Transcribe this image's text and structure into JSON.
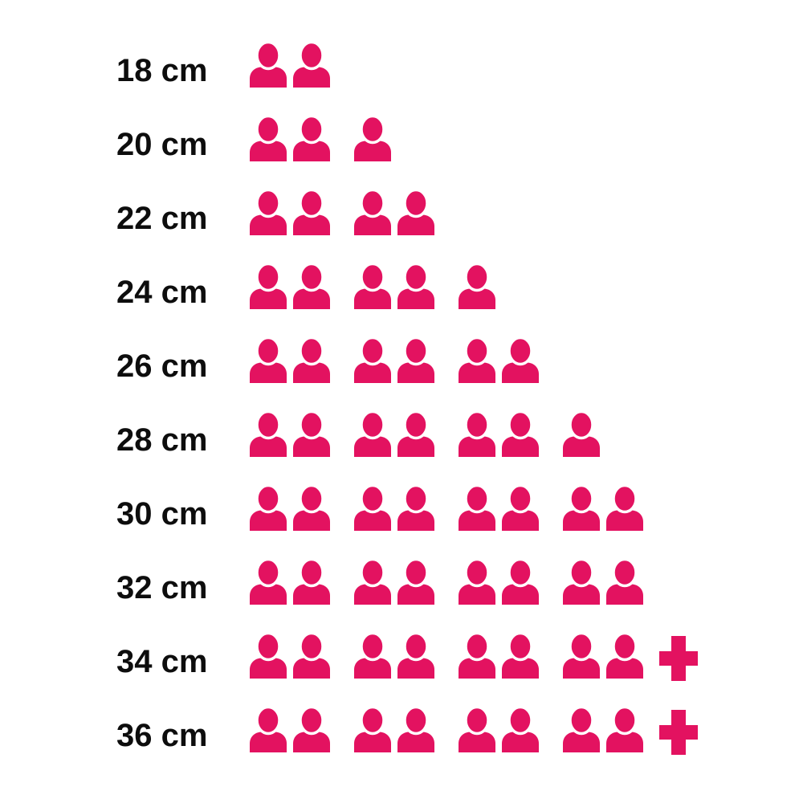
{
  "chart_data": {
    "type": "bar",
    "subtype": "pictogram",
    "title": "",
    "categories": [
      "18 cm",
      "20 cm",
      "22 cm",
      "24 cm",
      "26 cm",
      "28 cm",
      "30 cm",
      "32 cm",
      "34 cm",
      "36 cm"
    ],
    "values": [
      2,
      3,
      4,
      5,
      6,
      7,
      8,
      8,
      8,
      8
    ],
    "overflow_plus": [
      false,
      false,
      false,
      false,
      false,
      false,
      false,
      false,
      true,
      true
    ],
    "icon": "person-icon",
    "icon_grouping": 2,
    "icon_color": "#E31260",
    "plus_symbol": "+",
    "label_color": "#0d0d0d",
    "background_color": "#ffffff",
    "xlabel": "",
    "ylabel": "",
    "legend": "none",
    "orientation": "horizontal-rows"
  }
}
